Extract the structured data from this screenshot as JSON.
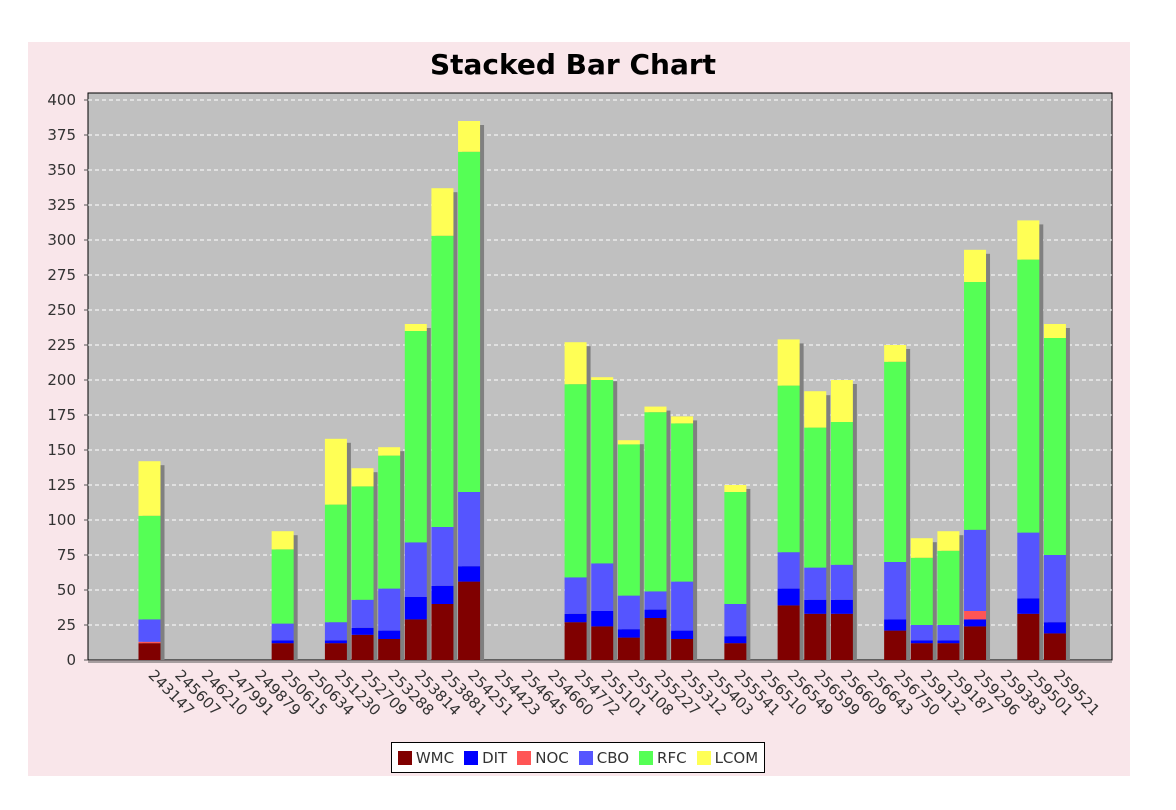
{
  "chart_data": {
    "type": "bar",
    "stacked": true,
    "title": "Stacked Bar Chart",
    "xlabel": "",
    "ylabel": "",
    "ylim": [
      0,
      400
    ],
    "yticks": [
      0,
      25,
      50,
      75,
      100,
      125,
      150,
      175,
      200,
      225,
      250,
      275,
      300,
      325,
      350,
      375,
      400
    ],
    "grid": true,
    "legend_position": "bottom",
    "categories": [
      "243147",
      "245607",
      "246210",
      "247991",
      "249879",
      "250615",
      "250634",
      "251230",
      "252709",
      "253288",
      "253814",
      "253881",
      "254251",
      "254423",
      "254645",
      "254660",
      "254772",
      "255101",
      "255108",
      "255227",
      "255312",
      "255403",
      "255541",
      "256510",
      "256549",
      "256599",
      "256609",
      "256643",
      "256750",
      "259132",
      "259187",
      "259296",
      "259383",
      "259501",
      "259521"
    ],
    "series": [
      {
        "name": "WMC",
        "color": "#800000",
        "values": [
          12,
          0,
          0,
          0,
          0,
          12,
          0,
          12,
          18,
          15,
          29,
          40,
          56,
          0,
          0,
          0,
          27,
          24,
          16,
          30,
          15,
          0,
          12,
          0,
          39,
          33,
          33,
          0,
          21,
          12,
          12,
          24,
          0,
          33,
          19
        ]
      },
      {
        "name": "DIT",
        "color": "#0000ff",
        "values": [
          0,
          0,
          0,
          0,
          0,
          2,
          0,
          2,
          5,
          6,
          16,
          13,
          11,
          0,
          0,
          0,
          6,
          11,
          6,
          6,
          6,
          0,
          5,
          0,
          12,
          10,
          10,
          0,
          8,
          2,
          2,
          5,
          0,
          11,
          8
        ]
      },
      {
        "name": "NOC",
        "color": "#ff5555",
        "values": [
          1,
          0,
          0,
          0,
          0,
          0,
          0,
          0,
          0,
          0,
          0,
          0,
          0,
          0,
          0,
          0,
          0,
          0,
          0,
          0,
          0,
          0,
          0,
          0,
          0,
          0,
          0,
          0,
          0,
          0,
          0,
          6,
          0,
          0,
          0
        ]
      },
      {
        "name": "CBO",
        "color": "#5555ff",
        "values": [
          16,
          0,
          0,
          0,
          0,
          12,
          0,
          13,
          20,
          30,
          39,
          42,
          53,
          0,
          0,
          0,
          26,
          34,
          24,
          13,
          35,
          0,
          23,
          0,
          26,
          23,
          25,
          0,
          41,
          11,
          11,
          58,
          0,
          47,
          48
        ]
      },
      {
        "name": "RFC",
        "color": "#55ff55",
        "values": [
          74,
          0,
          0,
          0,
          0,
          53,
          0,
          84,
          81,
          95,
          151,
          208,
          243,
          0,
          0,
          0,
          138,
          131,
          108,
          128,
          113,
          0,
          80,
          0,
          119,
          100,
          102,
          0,
          143,
          48,
          53,
          177,
          0,
          195,
          155
        ]
      },
      {
        "name": "LCOM",
        "color": "#ffff55",
        "values": [
          39,
          0,
          0,
          0,
          0,
          13,
          0,
          47,
          13,
          6,
          5,
          34,
          22,
          0,
          0,
          0,
          30,
          2,
          3,
          4,
          5,
          0,
          5,
          0,
          33,
          26,
          30,
          0,
          12,
          14,
          14,
          23,
          0,
          28,
          10
        ]
      }
    ]
  }
}
